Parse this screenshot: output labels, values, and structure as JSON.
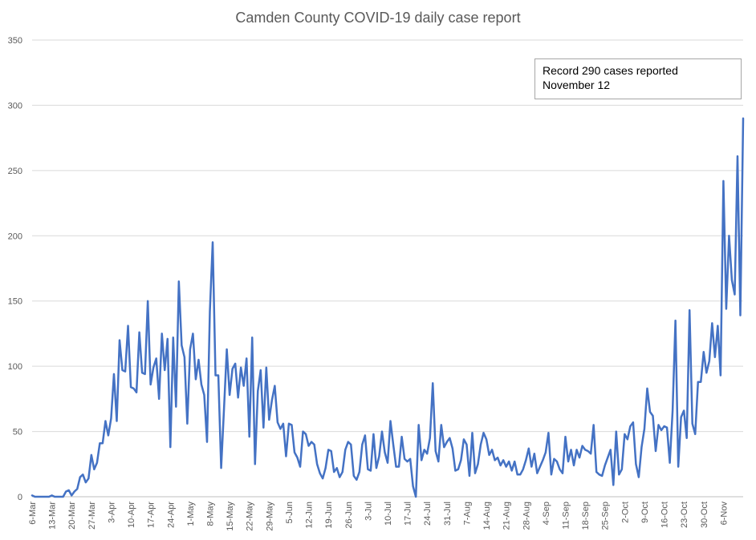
{
  "chart_data": {
    "type": "line",
    "title": "Camden County COVID-19 daily case report",
    "xlabel": "",
    "ylabel": "",
    "ylim": [
      0,
      350
    ],
    "yticks": [
      0,
      50,
      100,
      150,
      200,
      250,
      300,
      350
    ],
    "grid": "horizontal",
    "legend": "none",
    "line_color": "#4472c4",
    "annotation": {
      "line1": "Record 290 cases reported",
      "line2": "November 12"
    },
    "x_tick_labels": [
      "6-Mar",
      "13-Mar",
      "20-Mar",
      "27-Mar",
      "3-Apr",
      "10-Apr",
      "17-Apr",
      "24-Apr",
      "1-May",
      "8-May",
      "15-May",
      "22-May",
      "29-May",
      "5-Jun",
      "12-Jun",
      "19-Jun",
      "26-Jun",
      "3-Jul",
      "10-Jul",
      "17-Jul",
      "24-Jul",
      "31-Jul",
      "7-Aug",
      "14-Aug",
      "21-Aug",
      "28-Aug",
      "4-Sep",
      "11-Sep",
      "18-Sep",
      "25-Sep",
      "2-Oct",
      "9-Oct",
      "16-Oct",
      "23-Oct",
      "30-Oct",
      "6-Nov"
    ],
    "series": [
      {
        "start_date": "6-Mar",
        "end_date": "12-Nov",
        "values": [
          1,
          0,
          0,
          0,
          0,
          0,
          0,
          1,
          0,
          0,
          0,
          0,
          4,
          5,
          1,
          4,
          6,
          15,
          17,
          11,
          14,
          32,
          21,
          26,
          41,
          41,
          58,
          47,
          60,
          94,
          58,
          120,
          97,
          96,
          131,
          84,
          83,
          80,
          126,
          95,
          94,
          150,
          86,
          99,
          106,
          75,
          125,
          97,
          121,
          38,
          122,
          69,
          165,
          116,
          107,
          56,
          113,
          125,
          90,
          105,
          86,
          78,
          42,
          142,
          195,
          93,
          93,
          22,
          67,
          113,
          78,
          98,
          102,
          76,
          99,
          85,
          106,
          46,
          122,
          25,
          81,
          97,
          53,
          99,
          59,
          74,
          85,
          57,
          52,
          56,
          31,
          56,
          55,
          34,
          30,
          23,
          50,
          48,
          39,
          42,
          40,
          25,
          18,
          14,
          22,
          36,
          35,
          19,
          22,
          15,
          19,
          36,
          42,
          40,
          16,
          13,
          19,
          40,
          47,
          21,
          20,
          48,
          22,
          31,
          50,
          34,
          26,
          58,
          40,
          23,
          23,
          46,
          29,
          27,
          29,
          8,
          0,
          55,
          28,
          36,
          33,
          45,
          87,
          35,
          27,
          55,
          38,
          42,
          45,
          37,
          20,
          21,
          28,
          44,
          40,
          16,
          49,
          18,
          25,
          40,
          49,
          44,
          32,
          36,
          28,
          30,
          24,
          28,
          23,
          27,
          20,
          27,
          17,
          17,
          21,
          28,
          37,
          23,
          33,
          18,
          23,
          28,
          34,
          49,
          17,
          29,
          27,
          21,
          18,
          46,
          27,
          36,
          24,
          36,
          30,
          39,
          36,
          35,
          33,
          55,
          19,
          17,
          16,
          24,
          30,
          36,
          9,
          50,
          17,
          21,
          48,
          44,
          54,
          57,
          25,
          15,
          38,
          52,
          83,
          65,
          62,
          35,
          55,
          51,
          54,
          53,
          26,
          66,
          135,
          23,
          61,
          66,
          45,
          143,
          56,
          48,
          88,
          88,
          111,
          95,
          104,
          133,
          107,
          131,
          93,
          242,
          144,
          200,
          166,
          155,
          261,
          139,
          290
        ]
      }
    ]
  }
}
